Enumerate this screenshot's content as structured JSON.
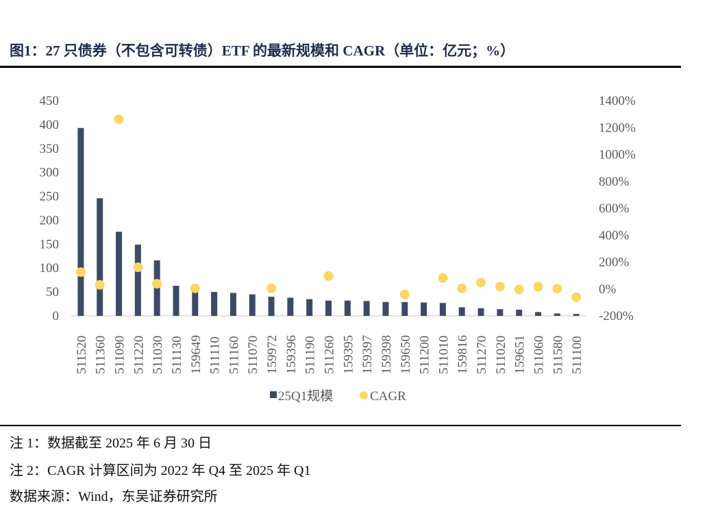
{
  "title": "图1：27 只债券（不包含可转债）ETF 的最新规模和 CAGR（单位：亿元；%）",
  "notes": [
    "注 1：数据截至 2025 年 6 月 30 日",
    "注 2：CAGR 计算区间为 2022 年 Q4 至 2025 年 Q1",
    "数据来源：Wind，东吴证券研究所"
  ],
  "colors": {
    "bar": "#3d4a66",
    "dot": "#fdd663",
    "title": "#1f2d4f"
  },
  "chart_data": {
    "type": "bar",
    "categories": [
      "511520",
      "511360",
      "511090",
      "511220",
      "511030",
      "511130",
      "159649",
      "511110",
      "511160",
      "511070",
      "159972",
      "159396",
      "511190",
      "511260",
      "159395",
      "159397",
      "159398",
      "159650",
      "511200",
      "511010",
      "159816",
      "511270",
      "511020",
      "159651",
      "511060",
      "511580",
      "511100"
    ],
    "series": [
      {
        "name": "25Q1规模",
        "type": "bar",
        "axis": "left",
        "values": [
          393,
          246,
          176,
          149,
          116,
          63,
          51,
          50,
          48,
          45,
          40,
          38,
          35,
          32,
          32,
          31,
          29,
          29,
          28,
          27,
          18,
          16,
          14,
          13,
          8,
          5,
          4
        ]
      },
      {
        "name": "CAGR",
        "type": "scatter",
        "axis": "right",
        "unit": "%",
        "values": [
          125,
          31,
          1262,
          161,
          39,
          null,
          5,
          null,
          null,
          null,
          5,
          null,
          null,
          96,
          null,
          null,
          null,
          -41,
          null,
          82,
          5,
          48,
          17,
          -4,
          17,
          2,
          -62
        ]
      }
    ],
    "left_axis": {
      "ylim": [
        0,
        450
      ],
      "ticks": [
        0,
        50,
        100,
        150,
        200,
        250,
        300,
        350,
        400,
        450
      ]
    },
    "right_axis": {
      "ylim": [
        -200,
        1400
      ],
      "ticks": [
        "-200%",
        "0%",
        "200%",
        "400%",
        "600%",
        "800%",
        "1000%",
        "1200%",
        "1400%"
      ]
    },
    "legend": [
      "25Q1规模",
      "CAGR"
    ],
    "legend_placement": "bottom",
    "grid": false
  }
}
